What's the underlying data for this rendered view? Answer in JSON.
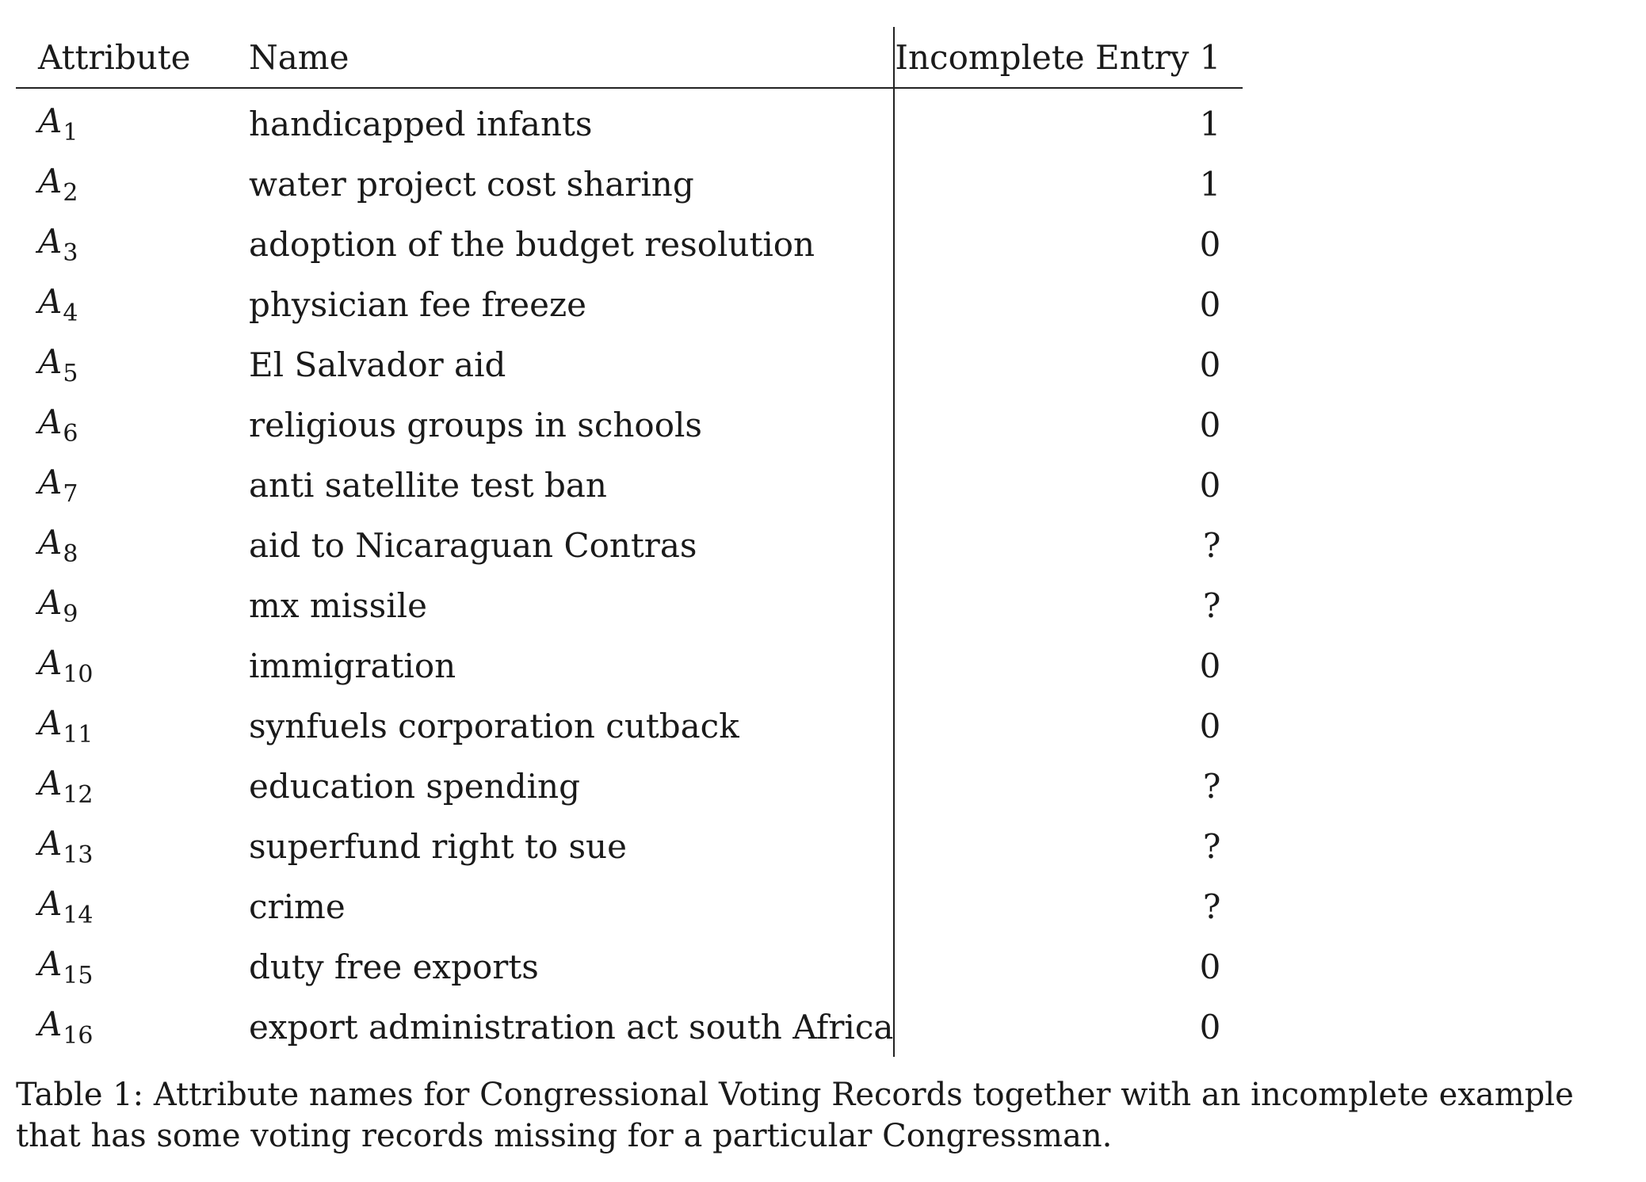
{
  "table": {
    "headers": {
      "attribute": "Attribute",
      "name": "Name",
      "entry": "Incomplete Entry 1"
    },
    "rows": [
      {
        "symbol": "A",
        "index": "1",
        "name": "handicapped infants",
        "value": "1"
      },
      {
        "symbol": "A",
        "index": "2",
        "name": "water project cost sharing",
        "value": "1"
      },
      {
        "symbol": "A",
        "index": "3",
        "name": "adoption of the budget resolution",
        "value": "0"
      },
      {
        "symbol": "A",
        "index": "4",
        "name": "physician fee freeze",
        "value": "0"
      },
      {
        "symbol": "A",
        "index": "5",
        "name": "El Salvador aid",
        "value": "0"
      },
      {
        "symbol": "A",
        "index": "6",
        "name": "religious groups in schools",
        "value": "0"
      },
      {
        "symbol": "A",
        "index": "7",
        "name": "anti satellite test ban",
        "value": "0"
      },
      {
        "symbol": "A",
        "index": "8",
        "name": "aid to Nicaraguan Contras",
        "value": "?"
      },
      {
        "symbol": "A",
        "index": "9",
        "name": "mx missile",
        "value": "?"
      },
      {
        "symbol": "A",
        "index": "10",
        "name": "immigration",
        "value": "0"
      },
      {
        "symbol": "A",
        "index": "11",
        "name": "synfuels corporation cutback",
        "value": "0"
      },
      {
        "symbol": "A",
        "index": "12",
        "name": "education spending",
        "value": "?"
      },
      {
        "symbol": "A",
        "index": "13",
        "name": "superfund right to sue",
        "value": "?"
      },
      {
        "symbol": "A",
        "index": "14",
        "name": "crime",
        "value": "?"
      },
      {
        "symbol": "A",
        "index": "15",
        "name": "duty free exports",
        "value": "0"
      },
      {
        "symbol": "A",
        "index": "16",
        "name": "export administration act south Africa",
        "value": "0"
      }
    ]
  },
  "caption": "Table 1: Attribute names for Congressional Voting Records together with an incomplete example that has some voting records missing for a particular Congressman."
}
